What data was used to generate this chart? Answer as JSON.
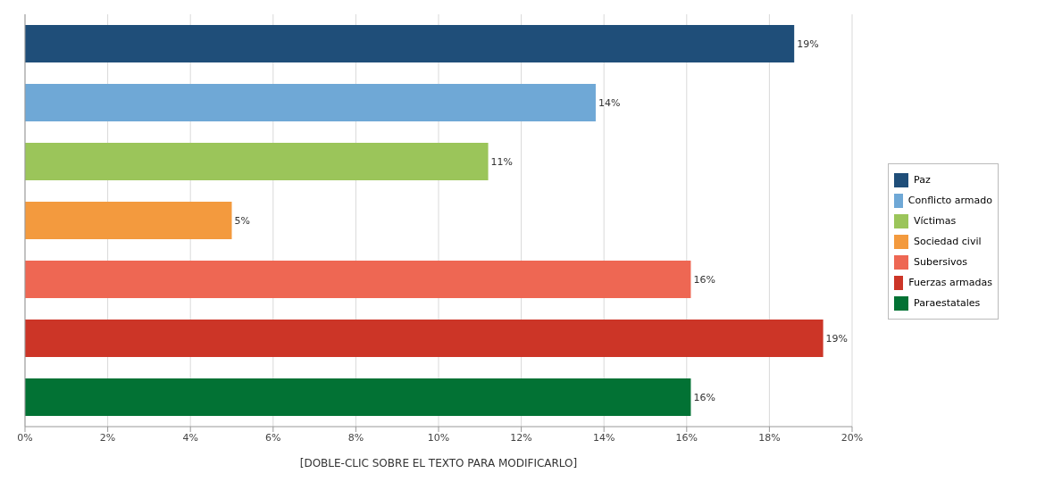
{
  "chart_data": {
    "type": "bar",
    "orientation": "horizontal",
    "stacked": true,
    "xlabel": "[DOBLE-CLIC SOBRE EL TEXTO PARA MODIFICARLO]",
    "categories": [
      null,
      null,
      null,
      null,
      null,
      null,
      null
    ],
    "series": [
      {
        "name": "Paz",
        "color": "#1f4e79",
        "values": [
          18.6,
          null,
          null,
          null,
          null,
          null,
          null
        ],
        "value_labels": [
          "19%",
          null,
          null,
          null,
          null,
          null,
          null
        ]
      },
      {
        "name": "Conflicto armado",
        "color": "#6fa8d6",
        "values": [
          null,
          13.8,
          null,
          null,
          null,
          null,
          null
        ],
        "value_labels": [
          null,
          "14%",
          null,
          null,
          null,
          null,
          null
        ]
      },
      {
        "name": "Víctimas",
        "color": "#9bc55a",
        "values": [
          null,
          null,
          11.2,
          null,
          null,
          null,
          null
        ],
        "value_labels": [
          null,
          null,
          "11%",
          null,
          null,
          null,
          null
        ]
      },
      {
        "name": "Sociedad civil",
        "color": "#f39a3e",
        "values": [
          null,
          null,
          null,
          5.0,
          null,
          null,
          null
        ],
        "value_labels": [
          null,
          null,
          null,
          "5%",
          null,
          null,
          null
        ]
      },
      {
        "name": "Subersivos",
        "color": "#ee6753",
        "values": [
          null,
          null,
          null,
          null,
          16.1,
          null,
          null
        ],
        "value_labels": [
          null,
          null,
          null,
          null,
          "16%",
          null,
          null
        ]
      },
      {
        "name": "Fuerzas armadas",
        "color": "#cc3527",
        "values": [
          null,
          null,
          null,
          null,
          null,
          19.3,
          null
        ],
        "value_labels": [
          null,
          null,
          null,
          null,
          null,
          "19%",
          null
        ]
      },
      {
        "name": "Paraestatales",
        "color": "#027234",
        "values": [
          null,
          null,
          null,
          null,
          null,
          null,
          16.1
        ],
        "value_labels": [
          null,
          null,
          null,
          null,
          null,
          null,
          "16%"
        ]
      }
    ],
    "xlim": [
      0,
      20
    ],
    "xticks": [
      {
        "value": 0,
        "label": "0%"
      },
      {
        "value": 2,
        "label": "2%"
      },
      {
        "value": 4,
        "label": "4%"
      },
      {
        "value": 6,
        "label": "6%"
      },
      {
        "value": 8,
        "label": "8%"
      },
      {
        "value": 10,
        "label": "10%"
      },
      {
        "value": 12,
        "label": "12%"
      },
      {
        "value": 14,
        "label": "14%"
      },
      {
        "value": 16,
        "label": "16%"
      },
      {
        "value": 18,
        "label": "18%"
      },
      {
        "value": 20,
        "label": "20%"
      }
    ],
    "grid": "x",
    "legend": "right"
  }
}
